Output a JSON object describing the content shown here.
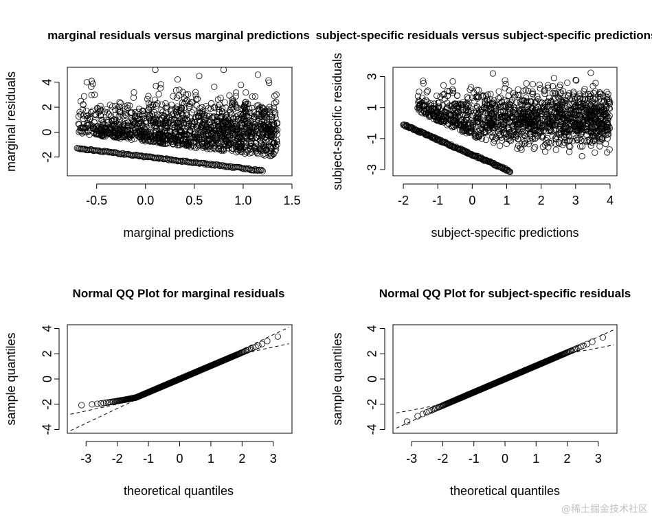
{
  "watermark": "@稀土掘金技术社区",
  "chart_data": [
    {
      "type": "scatter",
      "title": "marginal residuals versus marginal predictions",
      "xlabel": "marginal predictions",
      "ylabel": "marginal residuals",
      "xlim": [
        -0.8,
        1.5
      ],
      "ylim": [
        -3.5,
        5.2
      ],
      "xticks": [
        -0.5,
        0.0,
        0.5,
        1.0,
        1.5
      ],
      "xtick_labels": [
        "-0.5",
        "0.0",
        "0.5",
        "1.0",
        "1.5"
      ],
      "yticks": [
        -2,
        0,
        2,
        4
      ],
      "ytick_labels": [
        "-2",
        "0",
        "2",
        "4"
      ],
      "grid": false,
      "marker": "open-circle",
      "n_points": 1400,
      "point_cloud": {
        "x_range": [
          -0.7,
          1.35
        ],
        "y_center": 0.2,
        "y_spread": 1.3
      },
      "lower_band": {
        "x": [
          -0.7,
          1.2
        ],
        "y": [
          -1.3,
          -3.1
        ]
      },
      "upper_outliers": [
        [
          -0.6,
          4.0
        ],
        [
          0.1,
          5.0
        ],
        [
          0.8,
          5.0
        ],
        [
          -0.55,
          4.1
        ],
        [
          0.55,
          4.5
        ]
      ]
    },
    {
      "type": "scatter",
      "title": "subject-specific residuals versus subject-specific predictions",
      "xlabel": "subject-specific predictions",
      "ylabel": "subject-specific residuals",
      "xlim": [
        -2.3,
        4.2
      ],
      "ylim": [
        -3.4,
        3.6
      ],
      "xticks": [
        -2,
        -1,
        0,
        1,
        2,
        3,
        4
      ],
      "xtick_labels": [
        "-2",
        "-1",
        "0",
        "1",
        "2",
        "3",
        "4"
      ],
      "yticks": [
        -3,
        -1,
        1,
        3
      ],
      "ytick_labels": [
        "-3",
        "-1",
        "1",
        "3"
      ],
      "grid": false,
      "marker": "open-circle",
      "n_points": 1400,
      "point_cloud": {
        "x_range": [
          -1.6,
          4.0
        ],
        "y_center": 0.3,
        "y_spread": 0.9
      },
      "lower_band": {
        "x": [
          -2.0,
          1.1
        ],
        "y": [
          -0.1,
          -3.1
        ]
      },
      "upper_outliers": [
        [
          0.6,
          3.2
        ],
        [
          3.7,
          1.9
        ],
        [
          3.9,
          2.0
        ],
        [
          3.7,
          -1.5
        ],
        [
          3.4,
          0.8
        ]
      ]
    },
    {
      "type": "scatter",
      "title": "Normal QQ Plot for marginal residuals",
      "xlabel": "theoretical quantiles",
      "ylabel": "sample quantiles",
      "xlim": [
        -3.6,
        3.6
      ],
      "ylim": [
        -4.3,
        4.3
      ],
      "xticks": [
        -3,
        -2,
        -1,
        0,
        1,
        2,
        3
      ],
      "xtick_labels": [
        "-3",
        "-2",
        "-1",
        "0",
        "1",
        "2",
        "3"
      ],
      "yticks": [
        -4,
        -2,
        0,
        2,
        4
      ],
      "ytick_labels": [
        "-4",
        "-2",
        "0",
        "2",
        "4"
      ],
      "grid": false,
      "marker": "open-circle",
      "qq": {
        "q_range": [
          -3.4,
          3.4
        ],
        "low_floor": -2.1,
        "low_knee": -1.4,
        "high_cap": 3.6
      },
      "reference_lines": [
        {
          "style": "dashed",
          "x": [
            -3.5,
            3.5
          ],
          "y": [
            -4.1,
            4.1
          ]
        },
        {
          "style": "dashed",
          "x": [
            -3.5,
            -2.0,
            0.0,
            2.0,
            3.5
          ],
          "y": [
            -2.8,
            -2.0,
            0.0,
            2.0,
            2.8
          ]
        }
      ]
    },
    {
      "type": "scatter",
      "title": "Normal QQ Plot for subject-specific residuals",
      "xlabel": "theoretical quantiles",
      "ylabel": "sample quantiles",
      "xlim": [
        -3.6,
        3.6
      ],
      "ylim": [
        -4.3,
        4.3
      ],
      "xticks": [
        -3,
        -2,
        -1,
        0,
        1,
        2,
        3
      ],
      "xtick_labels": [
        "-3",
        "-2",
        "-1",
        "0",
        "1",
        "2",
        "3"
      ],
      "yticks": [
        -4,
        -2,
        0,
        2,
        4
      ],
      "ytick_labels": [
        "-4",
        "-2",
        "0",
        "2",
        "4"
      ],
      "grid": false,
      "marker": "open-circle",
      "qq": {
        "q_range": [
          -3.4,
          3.4
        ],
        "slope": 1.05,
        "tail_low": -3.5,
        "tail_high": 3.7
      },
      "reference_lines": [
        {
          "style": "dashed",
          "x": [
            -3.5,
            3.5
          ],
          "y": [
            -3.9,
            3.9
          ]
        },
        {
          "style": "dashed",
          "x": [
            -3.5,
            -2.0,
            0.0,
            2.0,
            3.5
          ],
          "y": [
            -2.7,
            -2.0,
            0.0,
            2.0,
            2.7
          ]
        }
      ]
    }
  ]
}
